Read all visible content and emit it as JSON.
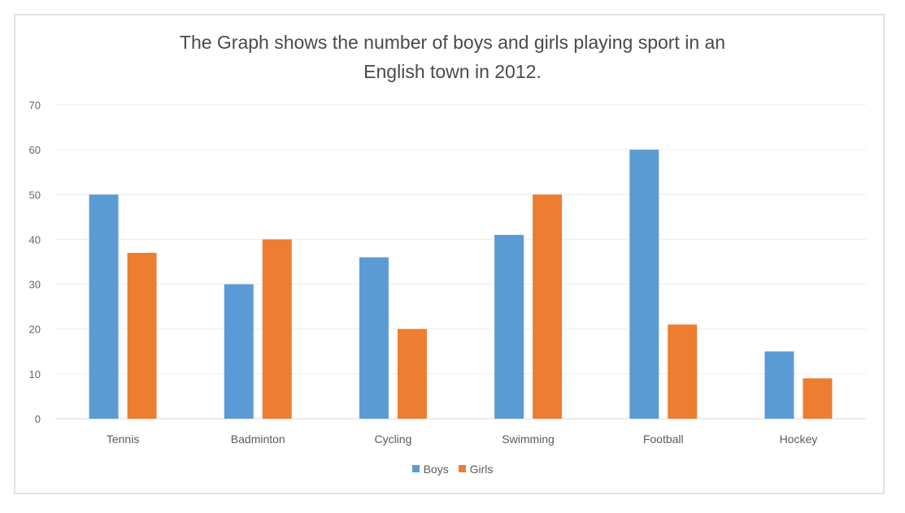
{
  "chart_data": {
    "type": "bar",
    "title": "The Graph shows the number of boys and girls playing sport in an",
    "subtitle": "English town in 2012.",
    "categories": [
      "Tennis",
      "Badminton",
      "Cycling",
      "Swimming",
      "Football",
      "Hockey"
    ],
    "series": [
      {
        "name": "Boys",
        "color": "#5b9bd5",
        "values": [
          50,
          30,
          36,
          41,
          60,
          15
        ]
      },
      {
        "name": "Girls",
        "color": "#ed7d31",
        "values": [
          37,
          40,
          20,
          50,
          21,
          9
        ]
      }
    ],
    "ylim": [
      0,
      70
    ],
    "yticks": [
      "0",
      "10",
      "20",
      "30",
      "40",
      "50",
      "60",
      "70"
    ],
    "grid": true,
    "legend": "bottom"
  }
}
